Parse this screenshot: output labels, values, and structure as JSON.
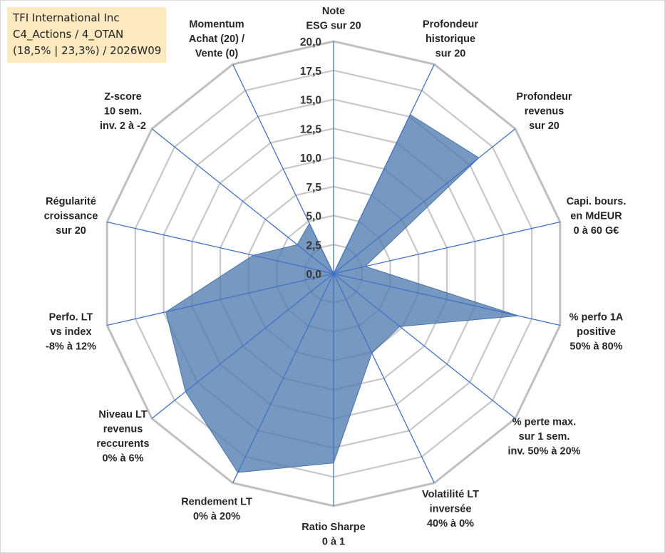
{
  "title": {
    "line1": "TFI International Inc",
    "line2": "C4_Actions / 4_OTAN",
    "line3": "(18,5% | 23,3%) / 2026W09"
  },
  "colors": {
    "fill": "#4f7bb0",
    "axis": "#4472c4",
    "grid": "#c8c8c8",
    "ring_outer": "#bfbfbf"
  },
  "chart_data": {
    "type": "radar",
    "rmax": 20,
    "grid_step": 2.5,
    "tick_labels": [
      "0,0",
      "2,5",
      "5,0",
      "7,5",
      "10,0",
      "12,5",
      "15,0",
      "17,5",
      "20,0"
    ],
    "axes": [
      {
        "label": [
          "Note",
          "ESG sur 20"
        ],
        "value": 0
      },
      {
        "label": [
          "Profondeur",
          "historique",
          "sur 20"
        ],
        "value": 15.2
      },
      {
        "label": [
          "Profondeur",
          "revenus",
          "sur 20"
        ],
        "value": 16.0
      },
      {
        "label": [
          "Capi. bours.",
          "en MdEUR",
          "0 à 60 G€"
        ],
        "value": 2.8
      },
      {
        "label": [
          "% perfo 1A",
          "positive",
          "50% à 80%"
        ],
        "value": 16.3
      },
      {
        "label": [
          "% perte max.",
          "sur 1 sem.",
          "inv. 50% à 20%"
        ],
        "value": 7.3
      },
      {
        "label": [
          "Volatilité LT",
          "inversée",
          "40% à 0%"
        ],
        "value": 7.6
      },
      {
        "label": [
          "Ratio Sharpe",
          "0 à 1"
        ],
        "value": 16.3
      },
      {
        "label": [
          "Rendement LT",
          "0% à 20%"
        ],
        "value": 19.0
      },
      {
        "label": [
          "Niveau LT",
          "revenus",
          "reccurents",
          "0% à 6%"
        ],
        "value": 16.3
      },
      {
        "label": [
          "Perfo. LT",
          "vs index",
          "-8% à 12%"
        ],
        "value": 14.8
      },
      {
        "label": [
          "Régularité",
          "croissance",
          "sur 20"
        ],
        "value": 7.1
      },
      {
        "label": [
          "Z-score",
          "10 sem.",
          "inv. 2 à -2"
        ],
        "value": 4.0
      },
      {
        "label": [
          "Momentum",
          "Achat (20) /",
          "Vente (0)"
        ],
        "value": 4.8
      }
    ]
  }
}
